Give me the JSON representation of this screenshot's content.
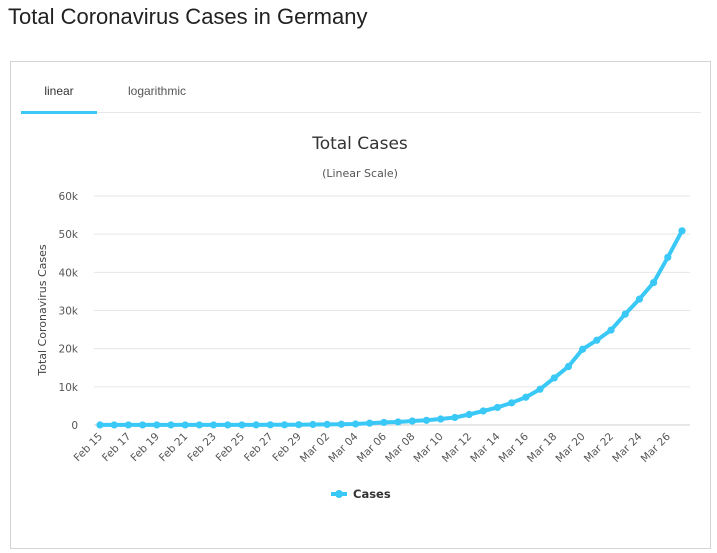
{
  "page": {
    "title": "Total Coronavirus Cases in Germany"
  },
  "tabs": [
    {
      "label": "linear",
      "active": true
    },
    {
      "label": "logarithmic",
      "active": false
    }
  ],
  "colors": {
    "series": "#3ac8f6",
    "grid": "#e6e6e6",
    "tab_underline": "#3ac8f6"
  },
  "chart_data": {
    "type": "line",
    "title": "Total Cases",
    "subtitle": "(Linear Scale)",
    "ylabel": "Total Coronavirus Cases",
    "xlabel": "",
    "ylim": [
      0,
      60000
    ],
    "yticks": [
      0,
      10000,
      20000,
      30000,
      40000,
      50000,
      60000
    ],
    "ytick_labels": [
      "0",
      "10k",
      "20k",
      "30k",
      "40k",
      "50k",
      "60k"
    ],
    "xtick_labels": [
      "Feb 15",
      "Feb 17",
      "Feb 19",
      "Feb 21",
      "Feb 23",
      "Feb 25",
      "Feb 27",
      "Feb 29",
      "Mar 02",
      "Mar 04",
      "Mar 06",
      "Mar 08",
      "Mar 10",
      "Mar 12",
      "Mar 14",
      "Mar 16",
      "Mar 18",
      "Mar 20",
      "Mar 22",
      "Mar 24",
      "Mar 26"
    ],
    "grid": true,
    "legend": "bottom-center",
    "series": [
      {
        "name": "Cases",
        "x": [
          "Feb 15",
          "Feb 16",
          "Feb 17",
          "Feb 18",
          "Feb 19",
          "Feb 20",
          "Feb 21",
          "Feb 22",
          "Feb 23",
          "Feb 24",
          "Feb 25",
          "Feb 26",
          "Feb 27",
          "Feb 28",
          "Feb 29",
          "Mar 01",
          "Mar 02",
          "Mar 03",
          "Mar 04",
          "Mar 05",
          "Mar 06",
          "Mar 07",
          "Mar 08",
          "Mar 09",
          "Mar 10",
          "Mar 11",
          "Mar 12",
          "Mar 13",
          "Mar 14",
          "Mar 15",
          "Mar 16",
          "Mar 17",
          "Mar 18",
          "Mar 19",
          "Mar 20",
          "Mar 21",
          "Mar 22",
          "Mar 23",
          "Mar 24",
          "Mar 25",
          "Mar 26",
          "Mar 27"
        ],
        "values": [
          16,
          16,
          16,
          16,
          16,
          16,
          16,
          16,
          16,
          16,
          18,
          27,
          46,
          48,
          79,
          130,
          159,
          196,
          262,
          482,
          670,
          799,
          1040,
          1224,
          1565,
          1966,
          2745,
          3675,
          4599,
          5813,
          7272,
          9367,
          12327,
          15320,
          19848,
          22213,
          24873,
          29056,
          32986,
          37323,
          43938,
          50871
        ]
      }
    ]
  }
}
